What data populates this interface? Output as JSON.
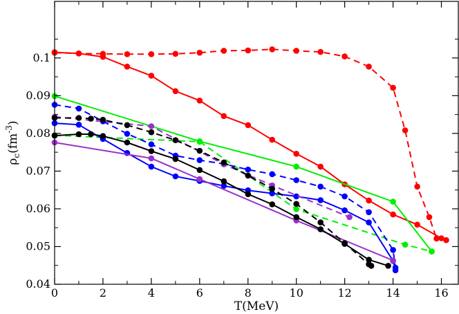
{
  "chart_data": {
    "type": "line",
    "title": "",
    "xlabel": "T(MeV)",
    "ylabel": {
      "symbol": "ρ",
      "subscript": "c",
      "units": "(fm",
      "exponent": "-3",
      "close": ")"
    },
    "xlim": [
      0,
      16.7
    ],
    "ylim": [
      0.04,
      0.115
    ],
    "xticks": [
      0,
      2,
      4,
      6,
      8,
      10,
      12,
      14,
      16
    ],
    "yticks": [
      0.04,
      0.05,
      0.06,
      0.07,
      0.08,
      0.09,
      0.1
    ],
    "xtick_labels": [
      "0",
      "2",
      "4",
      "6",
      "8",
      "10",
      "12",
      "14",
      "16"
    ],
    "ytick_labels": [
      "0.04",
      "0.05",
      "0.06",
      "0.07",
      "0.08",
      "0.09",
      "0.1"
    ],
    "grid": false,
    "series": [
      {
        "name": "red-solid",
        "color": "#ff0000",
        "dash": false,
        "markers": true,
        "x": [
          0,
          1,
          2,
          3,
          4,
          5,
          6,
          7,
          8,
          9,
          10,
          11,
          12,
          13,
          14,
          15,
          16,
          16.2
        ],
        "y": [
          0.1015,
          0.1012,
          0.1003,
          0.0977,
          0.0953,
          0.0912,
          0.0887,
          0.0846,
          0.0822,
          0.0783,
          0.0746,
          0.0712,
          0.0665,
          0.0622,
          0.0585,
          0.0558,
          0.0522,
          0.0517
        ]
      },
      {
        "name": "red-dashed",
        "color": "#ff0000",
        "dash": true,
        "markers": true,
        "x": [
          0,
          1,
          2,
          3,
          4,
          5,
          6,
          7,
          8,
          9,
          10,
          11,
          12,
          13,
          14,
          14.5,
          15,
          15.5,
          15.8
        ],
        "y": [
          0.1014,
          0.1012,
          0.1011,
          0.101,
          0.101,
          0.1011,
          0.1014,
          0.1019,
          0.102,
          0.1023,
          0.1019,
          0.1016,
          0.1004,
          0.0977,
          0.0921,
          0.0808,
          0.0659,
          0.0578,
          0.0521
        ]
      },
      {
        "name": "green-solid",
        "color": "#00ee00",
        "dash": false,
        "markers": true,
        "x": [
          0,
          6,
          10,
          14,
          15.6
        ],
        "y": [
          0.0899,
          0.0779,
          0.0712,
          0.0619,
          0.0487
        ]
      },
      {
        "name": "green-dashed",
        "color": "#00ee00",
        "dash": true,
        "markers": true,
        "x": [
          0,
          6,
          10,
          14.5,
          15.6
        ],
        "y": [
          0.0795,
          0.0778,
          0.0599,
          0.0505,
          0.0487
        ]
      },
      {
        "name": "blue-solid",
        "color": "#0000ff",
        "dash": false,
        "markers": true,
        "x": [
          0,
          1,
          2,
          3,
          4,
          5,
          6,
          7,
          8,
          9,
          10,
          11,
          12,
          13,
          14,
          14.1
        ],
        "y": [
          0.0827,
          0.0823,
          0.0785,
          0.0748,
          0.0712,
          0.0686,
          0.0674,
          0.0661,
          0.0649,
          0.0641,
          0.0633,
          0.0623,
          0.0596,
          0.0564,
          0.0462,
          0.0437
        ]
      },
      {
        "name": "blue-dashed",
        "color": "#0000ff",
        "dash": true,
        "markers": true,
        "x": [
          0,
          1,
          2,
          3,
          4,
          5,
          6,
          7,
          8,
          9,
          10,
          11,
          12,
          13,
          14,
          14.1
        ],
        "y": [
          0.0876,
          0.0866,
          0.0832,
          0.0799,
          0.0771,
          0.0741,
          0.0729,
          0.0719,
          0.0704,
          0.0692,
          0.0676,
          0.0659,
          0.0633,
          0.0591,
          0.0491,
          0.0444
        ]
      },
      {
        "name": "purple-solid",
        "color": "#9932cc",
        "dash": false,
        "markers": true,
        "x": [
          0,
          4,
          6,
          10,
          14
        ],
        "y": [
          0.0776,
          0.0734,
          0.0679,
          0.0569,
          0.0463
        ]
      },
      {
        "name": "purple-dashed",
        "color": "#9932cc",
        "dash": true,
        "markers": true,
        "x": [
          0,
          4,
          7,
          9,
          12.2
        ],
        "y": [
          0.0844,
          0.0819,
          0.0718,
          0.0662,
          0.0578
        ]
      },
      {
        "name": "black-solid",
        "color": "#000000",
        "dash": false,
        "markers": true,
        "x": [
          0,
          1,
          1.5,
          2,
          3,
          4,
          5,
          6,
          7,
          8,
          9,
          10,
          11,
          12,
          13,
          13.8
        ],
        "y": [
          0.0794,
          0.0798,
          0.0798,
          0.0793,
          0.0776,
          0.0753,
          0.0732,
          0.0703,
          0.0673,
          0.0639,
          0.0612,
          0.0578,
          0.0546,
          0.0507,
          0.0465,
          0.0449
        ]
      },
      {
        "name": "black-dashed",
        "color": "#000000",
        "dash": true,
        "markers": true,
        "x": [
          0,
          1,
          1.5,
          2,
          3,
          4,
          5,
          6,
          7,
          8,
          9,
          10,
          11,
          12,
          13,
          13.1
        ],
        "y": [
          0.0841,
          0.0841,
          0.0839,
          0.0836,
          0.0822,
          0.0803,
          0.0782,
          0.0754,
          0.0723,
          0.0688,
          0.0653,
          0.0613,
          0.0564,
          0.0509,
          0.0453,
          0.0449
        ]
      }
    ]
  }
}
